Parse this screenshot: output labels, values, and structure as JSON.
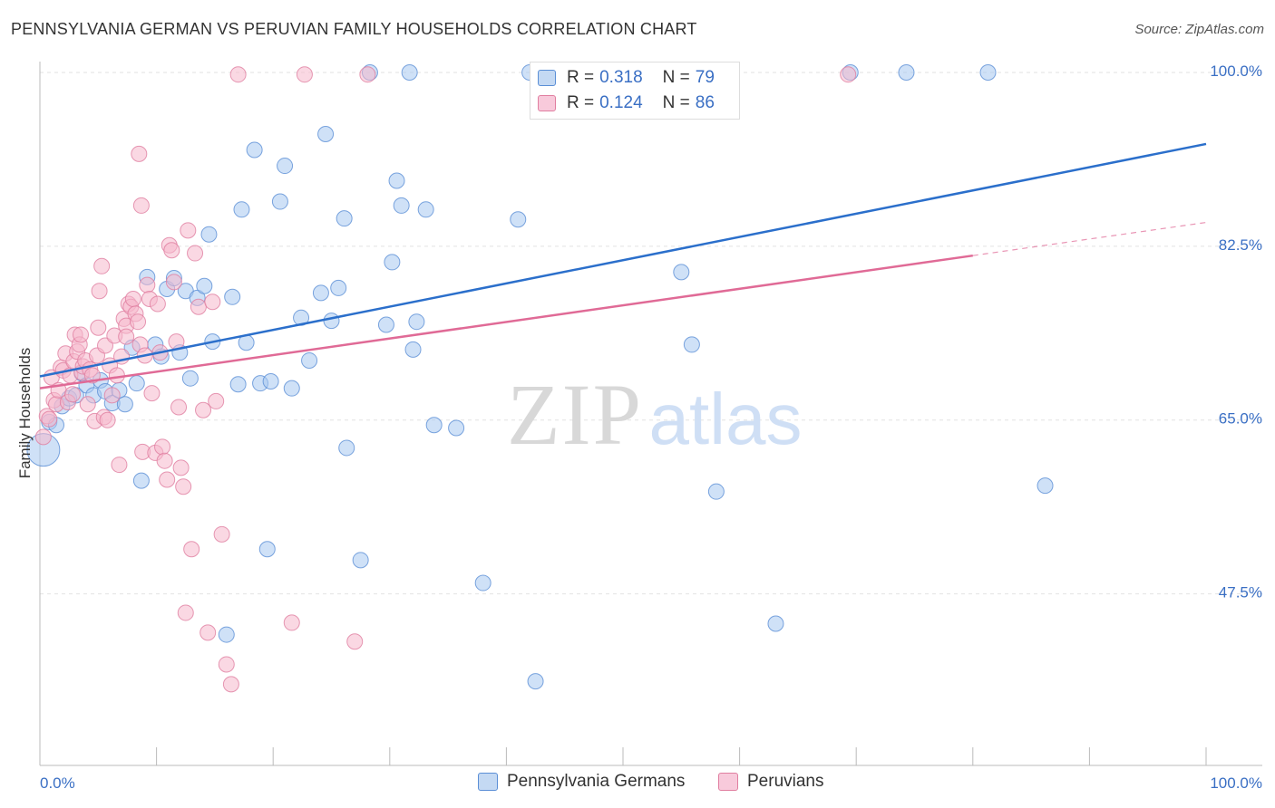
{
  "title": "PENNSYLVANIA GERMAN VS PERUVIAN FAMILY HOUSEHOLDS CORRELATION CHART",
  "source": "Source: ZipAtlas.com",
  "watermark": {
    "zip": "ZIP",
    "atlas": "atlas"
  },
  "colors": {
    "blue_fill": "#a8c8f0",
    "blue_stroke": "#5b8fd6",
    "blue_line": "#2b6fcb",
    "pink_fill": "#f6b8cc",
    "pink_stroke": "#e07ea0",
    "pink_line": "#e06a96",
    "axis_text": "#3a6fc4",
    "grid": "#e2e2e2"
  },
  "legend": {
    "rows": [
      {
        "r_label": "R =",
        "r_value": "0.318",
        "n_label": "N =",
        "n_value": "79"
      },
      {
        "r_label": "R =",
        "r_value": "0.124",
        "n_label": "N =",
        "n_value": "86"
      }
    ]
  },
  "bottom_legend": [
    "Pennsylvania Germans",
    "Peruvians"
  ],
  "chart_data": {
    "type": "scatter",
    "title": "PENNSYLVANIA GERMAN VS PERUVIAN FAMILY HOUSEHOLDS CORRELATION CHART",
    "xlabel": "",
    "ylabel": "Family Households",
    "xlim": [
      0,
      100
    ],
    "ylim": [
      29.5,
      101.5
    ],
    "x_tick_labels": [
      "0.0%",
      "100.0%"
    ],
    "y_ticks": [
      47.5,
      65.0,
      82.5,
      100.0
    ],
    "y_tick_labels": [
      "47.5%",
      "65.0%",
      "82.5%",
      "100.0%"
    ],
    "grid": true,
    "series": [
      {
        "name": "Pennsylvania Germans",
        "trend": {
          "x": [
            0,
            100
          ],
          "y": [
            69.4,
            92.8
          ],
          "dashed_from": null
        },
        "points": [
          [
            0.3,
            62.0
          ],
          [
            0.8,
            64.8
          ],
          [
            1.4,
            64.5
          ],
          [
            1.9,
            66.4
          ],
          [
            2.5,
            67.2
          ],
          [
            3.1,
            67.5
          ],
          [
            3.6,
            69.7
          ],
          [
            4.0,
            68.5
          ],
          [
            4.6,
            67.5
          ],
          [
            5.2,
            69.0
          ],
          [
            5.6,
            67.9
          ],
          [
            6.2,
            66.7
          ],
          [
            6.8,
            68.0
          ],
          [
            7.3,
            66.6
          ],
          [
            7.9,
            72.3
          ],
          [
            8.3,
            68.7
          ],
          [
            8.7,
            58.9
          ],
          [
            9.2,
            79.4
          ],
          [
            9.9,
            72.6
          ],
          [
            10.4,
            71.4
          ],
          [
            10.9,
            78.2
          ],
          [
            11.5,
            79.3
          ],
          [
            12.0,
            71.8
          ],
          [
            12.5,
            78.0
          ],
          [
            12.9,
            69.2
          ],
          [
            13.5,
            77.3
          ],
          [
            14.1,
            78.5
          ],
          [
            14.5,
            83.7
          ],
          [
            14.8,
            72.9
          ],
          [
            16.0,
            43.4
          ],
          [
            16.5,
            77.4
          ],
          [
            17.0,
            68.6
          ],
          [
            17.3,
            86.2
          ],
          [
            17.7,
            72.8
          ],
          [
            18.4,
            92.2
          ],
          [
            18.9,
            68.7
          ],
          [
            19.5,
            52.0
          ],
          [
            19.8,
            68.9
          ],
          [
            20.6,
            87.0
          ],
          [
            21.0,
            90.6
          ],
          [
            21.6,
            68.2
          ],
          [
            22.4,
            75.3
          ],
          [
            23.1,
            71.0
          ],
          [
            24.1,
            77.8
          ],
          [
            24.5,
            93.8
          ],
          [
            25.0,
            75.0
          ],
          [
            25.6,
            78.3
          ],
          [
            26.1,
            85.3
          ],
          [
            26.3,
            62.2
          ],
          [
            27.5,
            50.9
          ],
          [
            28.3,
            100.0
          ],
          [
            29.7,
            74.6
          ],
          [
            30.2,
            80.9
          ],
          [
            30.6,
            89.1
          ],
          [
            31.0,
            86.6
          ],
          [
            31.7,
            100.0
          ],
          [
            32.0,
            72.1
          ],
          [
            32.3,
            74.9
          ],
          [
            33.1,
            86.2
          ],
          [
            33.8,
            64.5
          ],
          [
            35.7,
            64.2
          ],
          [
            38.0,
            48.6
          ],
          [
            41.0,
            85.2
          ],
          [
            42.0,
            100.0
          ],
          [
            42.5,
            38.7
          ],
          [
            45.8,
            100.0
          ],
          [
            49.0,
            100.0
          ],
          [
            52.5,
            100.0
          ],
          [
            54.5,
            100.0
          ],
          [
            55.0,
            79.9
          ],
          [
            55.9,
            72.6
          ],
          [
            57.5,
            100.0
          ],
          [
            58.0,
            57.8
          ],
          [
            59.0,
            100.0
          ],
          [
            63.1,
            44.5
          ],
          [
            69.5,
            100.0
          ],
          [
            74.3,
            100.0
          ],
          [
            81.3,
            100.0
          ],
          [
            86.2,
            58.4
          ]
        ]
      },
      {
        "name": "Peruvians",
        "trend": {
          "x": [
            0,
            100
          ],
          "y": [
            68.2,
            84.9
          ],
          "dashed_from": 80
        },
        "points": [
          [
            0.3,
            63.3
          ],
          [
            0.6,
            65.4
          ],
          [
            0.8,
            65.1
          ],
          [
            1.0,
            69.3
          ],
          [
            1.2,
            67.0
          ],
          [
            1.4,
            66.6
          ],
          [
            1.6,
            68.0
          ],
          [
            1.8,
            70.3
          ],
          [
            2.0,
            70.0
          ],
          [
            2.2,
            71.7
          ],
          [
            2.4,
            66.8
          ],
          [
            2.6,
            69.5
          ],
          [
            2.8,
            67.6
          ],
          [
            2.9,
            70.9
          ],
          [
            3.0,
            73.6
          ],
          [
            3.2,
            71.9
          ],
          [
            3.4,
            72.6
          ],
          [
            3.5,
            73.6
          ],
          [
            3.6,
            69.8
          ],
          [
            3.7,
            70.4
          ],
          [
            3.9,
            71.0
          ],
          [
            4.1,
            66.6
          ],
          [
            4.3,
            70.1
          ],
          [
            4.5,
            69.5
          ],
          [
            4.7,
            64.9
          ],
          [
            4.9,
            71.5
          ],
          [
            5.0,
            74.3
          ],
          [
            5.1,
            78.0
          ],
          [
            5.3,
            80.5
          ],
          [
            5.5,
            65.3
          ],
          [
            5.6,
            72.5
          ],
          [
            5.8,
            65.0
          ],
          [
            6.0,
            70.5
          ],
          [
            6.2,
            67.5
          ],
          [
            6.4,
            73.5
          ],
          [
            6.6,
            69.5
          ],
          [
            6.8,
            60.5
          ],
          [
            7.0,
            71.4
          ],
          [
            7.2,
            75.2
          ],
          [
            7.4,
            74.5
          ],
          [
            7.6,
            76.7
          ],
          [
            7.8,
            76.4
          ],
          [
            8.0,
            77.2
          ],
          [
            8.2,
            75.7
          ],
          [
            8.4,
            74.9
          ],
          [
            8.6,
            72.6
          ],
          [
            8.8,
            61.8
          ],
          [
            9.0,
            71.5
          ],
          [
            9.2,
            78.6
          ],
          [
            9.4,
            77.2
          ],
          [
            9.6,
            67.7
          ],
          [
            9.9,
            61.7
          ],
          [
            10.1,
            76.7
          ],
          [
            10.3,
            71.8
          ],
          [
            10.5,
            62.3
          ],
          [
            10.7,
            60.9
          ],
          [
            10.9,
            59.0
          ],
          [
            11.1,
            82.6
          ],
          [
            11.3,
            82.1
          ],
          [
            11.5,
            78.9
          ],
          [
            11.7,
            72.9
          ],
          [
            11.9,
            66.3
          ],
          [
            12.1,
            60.2
          ],
          [
            12.3,
            58.3
          ],
          [
            12.5,
            45.6
          ],
          [
            12.7,
            84.1
          ],
          [
            13.0,
            52.0
          ],
          [
            13.3,
            81.8
          ],
          [
            13.6,
            76.4
          ],
          [
            14.0,
            66.0
          ],
          [
            14.4,
            43.6
          ],
          [
            14.8,
            76.9
          ],
          [
            15.1,
            66.9
          ],
          [
            15.6,
            53.5
          ],
          [
            16.0,
            40.4
          ],
          [
            16.4,
            38.4
          ],
          [
            17.0,
            99.8
          ],
          [
            21.6,
            44.6
          ],
          [
            22.7,
            99.8
          ],
          [
            27.0,
            42.7
          ],
          [
            28.1,
            99.8
          ],
          [
            52.4,
            99.8
          ],
          [
            69.3,
            99.8
          ],
          [
            8.5,
            91.8
          ],
          [
            8.7,
            86.6
          ],
          [
            7.4,
            73.4
          ]
        ]
      }
    ]
  }
}
